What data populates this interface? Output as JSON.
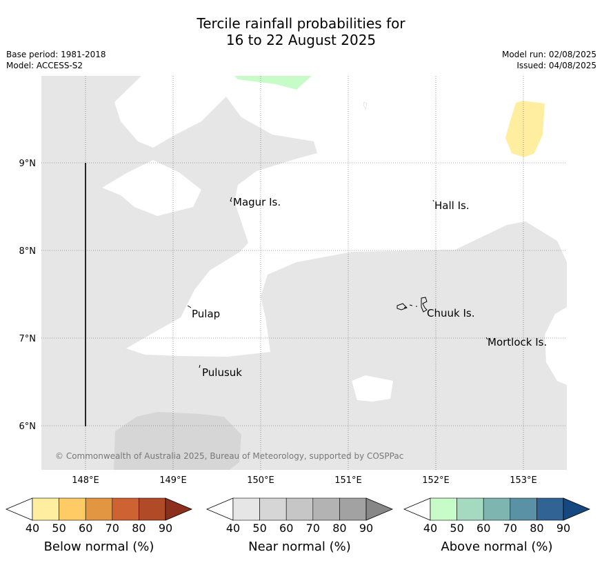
{
  "header": {
    "title_line1": "Tercile rainfall probabilities for",
    "title_line2": "16 to 22 August 2025",
    "base_period": "Base period: 1981-2018",
    "model": "Model: ACCESS-S2",
    "model_run": "Model run: 02/08/2025",
    "issued": "Issued: 04/08/2025"
  },
  "map": {
    "lon_labels": [
      "148°E",
      "149°E",
      "150°E",
      "151°E",
      "152°E",
      "153°E"
    ],
    "lat_labels": [
      "9°N",
      "8°N",
      "7°N",
      "6°N"
    ],
    "islands": [
      {
        "name": "Magur Is."
      },
      {
        "name": "Hall Is."
      },
      {
        "name": "Pulap"
      },
      {
        "name": "Chuuk Is."
      },
      {
        "name": "Mortlock Is."
      },
      {
        "name": "Pulusuk"
      }
    ],
    "copyright": "© Commonwealth of Australia 2025, Bureau of Meteorology, supported by COSPPac",
    "colors": {
      "near_normal_40": "#e6e6e6",
      "near_normal_50": "#d6d6d6",
      "below_normal_40": "#ffeda0",
      "above_normal_40": "#c7fcc9"
    }
  },
  "legend": {
    "bars": [
      {
        "label": "Below normal (%)",
        "ticks": [
          "40",
          "50",
          "60",
          "70",
          "80",
          "90"
        ],
        "colors": [
          "#ffeda0",
          "#fecb64",
          "#e39642",
          "#cf6232",
          "#b04a27",
          "#8c2f1c"
        ]
      },
      {
        "label": "Near normal (%)",
        "ticks": [
          "40",
          "50",
          "60",
          "70",
          "80",
          "90"
        ],
        "colors": [
          "#e6e6e6",
          "#d6d6d6",
          "#c6c6c6",
          "#b3b3b3",
          "#a2a2a2",
          "#878787"
        ]
      },
      {
        "label": "Above normal (%)",
        "ticks": [
          "40",
          "50",
          "60",
          "70",
          "80",
          "90"
        ],
        "colors": [
          "#c7fcc9",
          "#a5d9c0",
          "#7fb5b1",
          "#5a91a4",
          "#326395",
          "#15487e"
        ]
      }
    ]
  }
}
